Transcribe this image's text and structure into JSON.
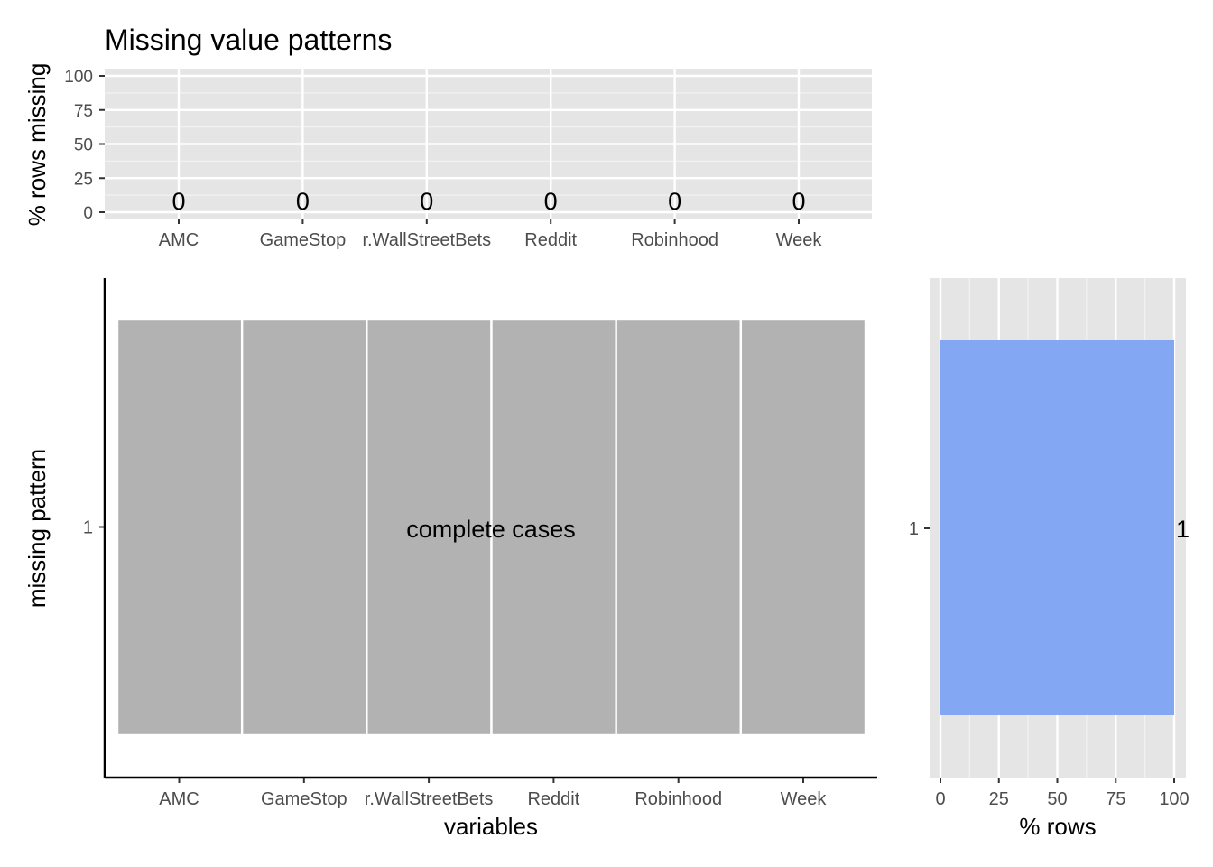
{
  "title": "Missing value patterns",
  "chart_data": [
    {
      "type": "bar",
      "ylabel": "% rows missing",
      "xlabel": "",
      "categories": [
        "AMC",
        "GameStop",
        "r.WallStreetBets",
        "Reddit",
        "Robinhood",
        "Week"
      ],
      "values": [
        0,
        0,
        0,
        0,
        0,
        0
      ],
      "data_labels": [
        "0",
        "0",
        "0",
        "0",
        "0",
        "0"
      ],
      "ylim": [
        0,
        100
      ],
      "yticks": [
        0,
        25,
        50,
        75,
        100
      ],
      "ytick_labels": [
        "0",
        "25",
        "50",
        "75",
        "100"
      ],
      "grid": true
    },
    {
      "type": "heatmap",
      "xlabel": "variables",
      "ylabel": "missing pattern",
      "categories": [
        "AMC",
        "GameStop",
        "r.WallStreetBets",
        "Reddit",
        "Robinhood",
        "Week"
      ],
      "patterns": [
        {
          "label": "1",
          "missing": [
            false,
            false,
            false,
            false,
            false,
            false
          ]
        }
      ],
      "annotation": "complete cases",
      "colors": {
        "present": "#b2b2b2",
        "missing": "#9bb7e6"
      }
    },
    {
      "type": "bar",
      "orientation": "horizontal",
      "xlabel": "% rows",
      "ylabel": "",
      "categories": [
        "1"
      ],
      "values": [
        100
      ],
      "data_labels": [
        "1"
      ],
      "xlim": [
        0,
        100
      ],
      "xticks": [
        0,
        25,
        50,
        75,
        100
      ],
      "xtick_labels": [
        "0",
        "25",
        "50",
        "75",
        "100"
      ],
      "colors": {
        "bar": "#84a7f3"
      },
      "grid": true
    }
  ]
}
